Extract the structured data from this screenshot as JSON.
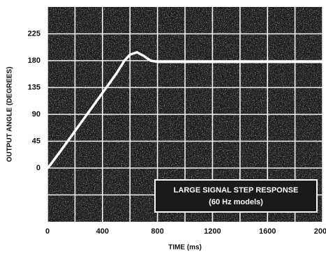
{
  "chart_data": {
    "type": "line",
    "xlabel": "TIME (ms)",
    "ylabel": "OUTPUT ANGLE (DEGREES)",
    "annotation": [
      "LARGE SIGNAL STEP RESPONSE",
      "(60 Hz models)"
    ],
    "x": [
      0,
      20,
      100,
      200,
      300,
      400,
      500,
      560,
      600,
      650,
      700,
      750,
      800,
      1000,
      1500,
      2000
    ],
    "series": [
      {
        "color": "#ffffff",
        "values": [
          0,
          5,
          30,
          62,
          94,
          126,
          158,
          180,
          190,
          194,
          188,
          180,
          178,
          178,
          178,
          178
        ]
      }
    ],
    "xlim": [
      0,
      2000
    ],
    "xticks": [
      0,
      400,
      800,
      1200,
      1600,
      2000
    ],
    "ylim": [
      -90,
      270
    ],
    "yticks": [
      0,
      45,
      90,
      135,
      180,
      225
    ],
    "grid": true
  }
}
